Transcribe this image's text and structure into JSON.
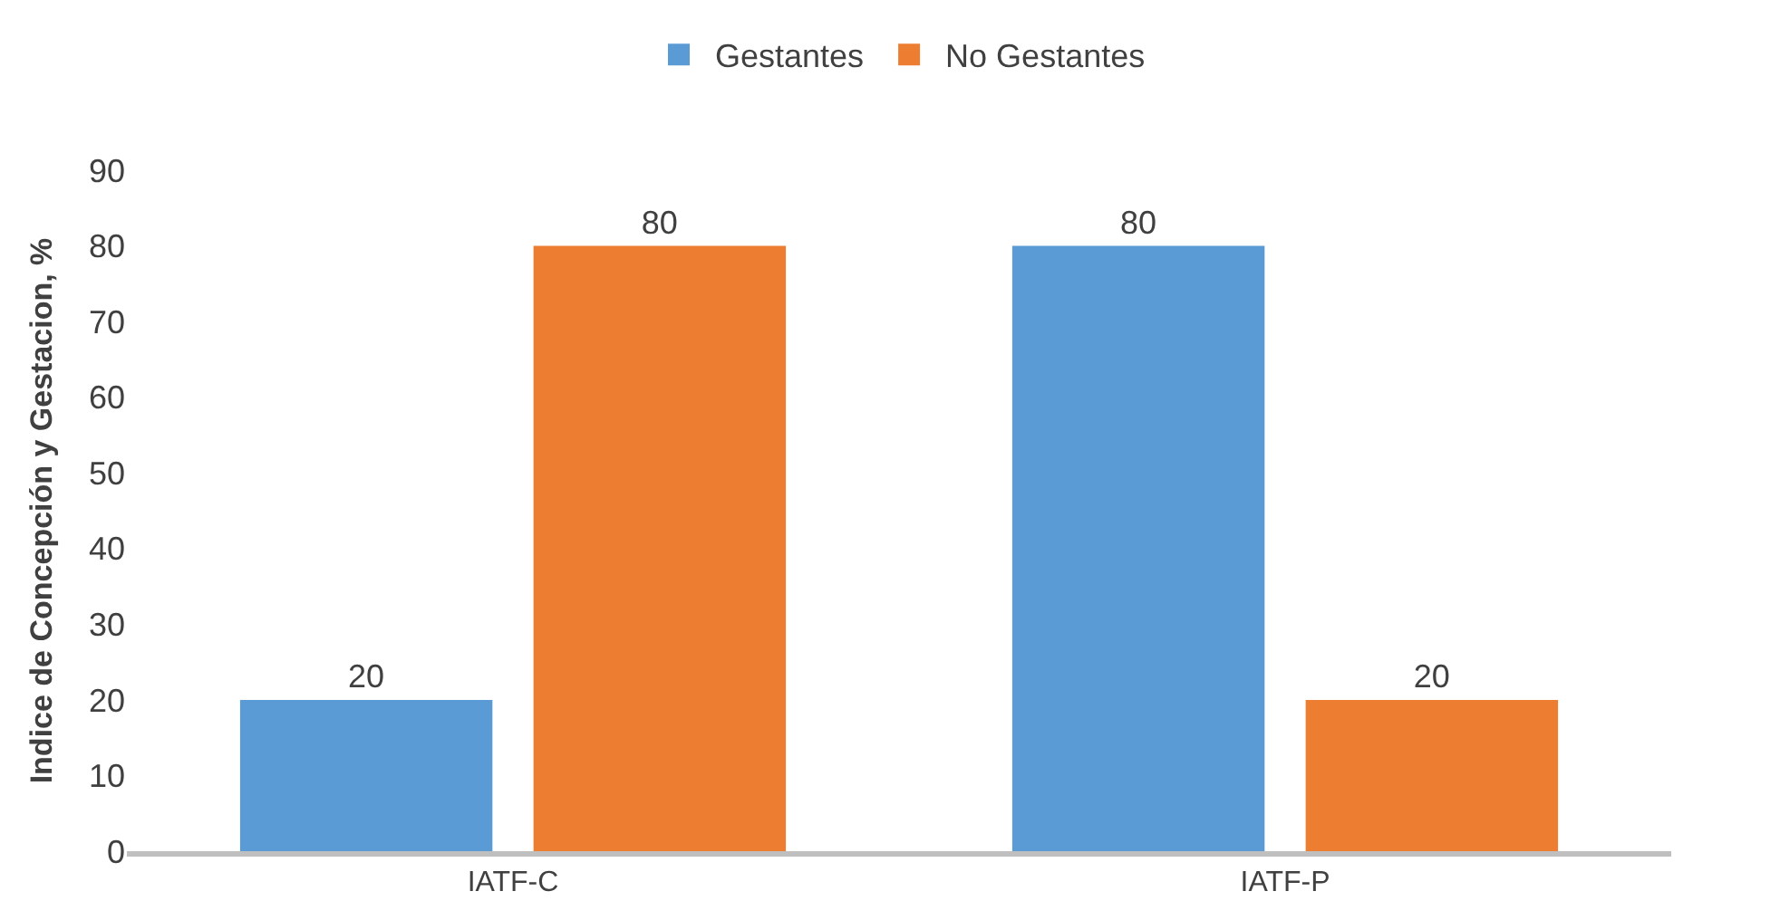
{
  "chart_data": {
    "type": "bar",
    "ylabel": "Indice de Concepción y Gestacion, %",
    "categories": [
      "IATF-C",
      "IATF-P"
    ],
    "series": [
      {
        "name": "Gestantes",
        "color": "#5b9bd5",
        "values": [
          20,
          80
        ]
      },
      {
        "name": "No Gestantes",
        "color": "#ed7d31",
        "values": [
          80,
          20
        ]
      }
    ],
    "ylim": [
      0,
      90
    ],
    "yticks": [
      0,
      10,
      20,
      30,
      40,
      50,
      60,
      70,
      80,
      90
    ],
    "legend": "top",
    "data_labels": true
  }
}
